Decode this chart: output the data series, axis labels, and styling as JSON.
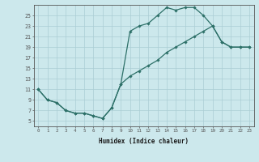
{
  "title": "",
  "xlabel": "Humidex (Indice chaleur)",
  "xlim": [
    -0.5,
    23.5
  ],
  "ylim": [
    4,
    27
  ],
  "bg_color": "#cce8ec",
  "grid_color": "#aacdd4",
  "line_color": "#2d7068",
  "line1_x": [
    0,
    1,
    2,
    3,
    4,
    5,
    6,
    7,
    8,
    9,
    10,
    11,
    12,
    13,
    14,
    15,
    16,
    17,
    18,
    19,
    20,
    21,
    22,
    23
  ],
  "line1_y": [
    11,
    9,
    8.5,
    7,
    6.5,
    6.5,
    6,
    5.5,
    7.5,
    12,
    22,
    23,
    23.5,
    25,
    26.5,
    26,
    26.5,
    26.5,
    25,
    23,
    20,
    19,
    19,
    19
  ],
  "line2_x": [
    0,
    1,
    2,
    3,
    4,
    5,
    6,
    7,
    8,
    9,
    10,
    11,
    12,
    13,
    14,
    15,
    16,
    17,
    18,
    19,
    20,
    21,
    22,
    23
  ],
  "line2_y": [
    11,
    9,
    8.5,
    7,
    6.5,
    6.5,
    6,
    5.5,
    7.5,
    12,
    13.5,
    14.5,
    15.5,
    16.5,
    18,
    19,
    20,
    21,
    22,
    23,
    20,
    19,
    19,
    19
  ],
  "xtick_labels": [
    "0",
    "1",
    "2",
    "3",
    "4",
    "5",
    "6",
    "7",
    "8",
    "9",
    "10",
    "11",
    "12",
    "13",
    "14",
    "15",
    "16",
    "17",
    "18",
    "19",
    "20",
    "21",
    "22",
    "23"
  ],
  "ytick_values": [
    5,
    7,
    9,
    11,
    13,
    15,
    17,
    19,
    21,
    23,
    25
  ]
}
